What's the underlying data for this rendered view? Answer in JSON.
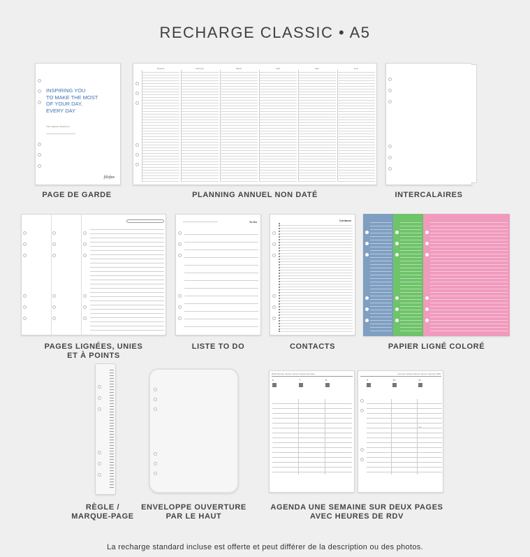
{
  "title": "RECHARGE CLASSIC • A5",
  "products": {
    "cover": {
      "label": "PAGE DE GARDE",
      "slogan": [
        "INSPIRING YOU",
        "TO MAKE THE MOST",
        "OF YOUR DAY,",
        "EVERY DAY"
      ],
      "belongs": "This organiser belongs to:",
      "logo": "filofax"
    },
    "planner": {
      "label": "PLANNING ANNUEL NON DATÉ",
      "months": [
        "January",
        "February",
        "March",
        "April",
        "May",
        "June"
      ]
    },
    "dividers": {
      "label": "INTERCALAIRES"
    },
    "ruled": {
      "label_line1": "PAGES LIGNÉES, UNIES",
      "label_line2": "ET À POINTS"
    },
    "todo": {
      "label": "LISTE TO DO",
      "heading": "To Do"
    },
    "contacts": {
      "label": "CONTACTS",
      "heading": "Contacts"
    },
    "colored": {
      "label": "PAPIER LIGNÉ COLORÉ",
      "colors": [
        "#7f9fc2",
        "#6fc46a",
        "#f09bbd"
      ]
    },
    "ruler": {
      "label_line1": "RÈGLE /",
      "label_line2": "MARQUE-PAGE"
    },
    "envelope": {
      "label_line1": "ENVELOPPE OUVERTURE",
      "label_line2": "PAR LE HAUT"
    },
    "agenda": {
      "label_line1": "AGENDA UNE SEMAINE SUR DEUX PAGES",
      "label_line2": "AVEC HEURES DE RDV",
      "left_header": "2025 January Janvier Januar Januari Gennaio",
      "right_header": "Gennaio Januari Januar Janvier January 2025",
      "days": [
        "6",
        "7",
        "8",
        "9",
        "10",
        "11",
        "12"
      ]
    }
  },
  "footer": "La recharge standard incluse est offerte et peut différer de la description ou des photos."
}
